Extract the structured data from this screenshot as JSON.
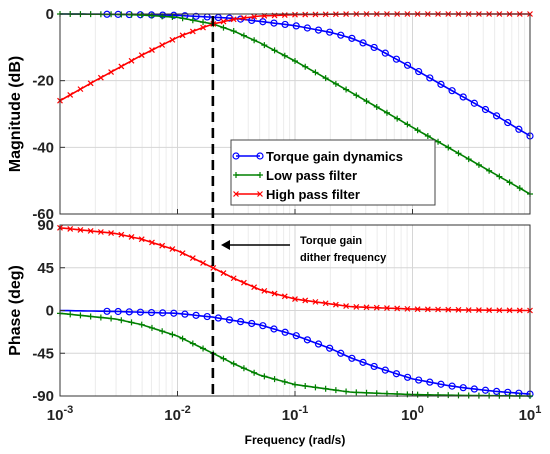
{
  "chart_data": [
    {
      "type": "line",
      "panel": "magnitude",
      "ylabel": "Magnitude (dB)",
      "xscale": "log",
      "xlim": [
        0.001,
        10
      ],
      "ylim": [
        -60,
        0
      ],
      "yticks": [
        0,
        -20,
        -40,
        -60
      ],
      "grid": true,
      "legend_position": "lower-right",
      "series": [
        {
          "name": "Torque gain dynamics",
          "color": "#0000ff",
          "marker": "circle",
          "x": [
            0.001,
            0.003,
            0.01,
            0.03,
            0.05,
            0.1,
            0.2,
            0.3,
            0.5,
            1,
            2,
            3,
            5,
            10
          ],
          "y": [
            0,
            -0.1,
            -0.4,
            -1.3,
            -2.2,
            -3.5,
            -5.5,
            -7.2,
            -10.4,
            -16.2,
            -22.3,
            -25.8,
            -30.2,
            -36.6
          ]
        },
        {
          "name": "Low pass filter",
          "color": "#008000",
          "marker": "plus",
          "x": [
            0.001,
            0.003,
            0.005,
            0.01,
            0.02,
            0.03,
            0.05,
            0.1,
            0.3,
            1,
            3,
            10
          ],
          "y": [
            0,
            -0.1,
            -0.3,
            -1.0,
            -3.0,
            -5.1,
            -8.6,
            -14.1,
            -23.5,
            -34,
            -43.5,
            -54
          ]
        },
        {
          "name": "High pass filter",
          "color": "#ff0000",
          "marker": "x",
          "x": [
            0.001,
            0.002,
            0.005,
            0.01,
            0.015,
            0.02,
            0.03,
            0.05,
            0.1,
            0.3,
            1,
            10
          ],
          "y": [
            -26,
            -20,
            -12.3,
            -7.0,
            -4.6,
            -3.0,
            -1.6,
            -0.6,
            -0.2,
            0,
            0,
            0
          ]
        }
      ]
    },
    {
      "type": "line",
      "panel": "phase",
      "ylabel": "Phase (deg)",
      "xlabel": "Frequency  (rad/s)",
      "xscale": "log",
      "xlim": [
        0.001,
        10
      ],
      "ylim": [
        -90,
        90
      ],
      "yticks": [
        90,
        45,
        0,
        -45,
        -90
      ],
      "xticks": [
        "10^-3",
        "10^-2",
        "10^-1",
        "10^0",
        "10^1"
      ],
      "grid": true,
      "series": [
        {
          "name": "Torque gain dynamics",
          "color": "#0000ff",
          "marker": "circle",
          "x": [
            0.001,
            0.003,
            0.01,
            0.02,
            0.05,
            0.1,
            0.2,
            0.3,
            0.5,
            1,
            2,
            3,
            5,
            10
          ],
          "y": [
            0,
            -1,
            -3,
            -7,
            -15,
            -26,
            -40,
            -50,
            -60,
            -72,
            -79,
            -82,
            -85,
            -88
          ]
        },
        {
          "name": "Low pass filter",
          "color": "#008000",
          "marker": "plus",
          "x": [
            0.001,
            0.003,
            0.005,
            0.01,
            0.02,
            0.03,
            0.05,
            0.1,
            0.3,
            1,
            3,
            10
          ],
          "y": [
            -3,
            -9,
            -15,
            -27,
            -45,
            -56,
            -68,
            -78,
            -86,
            -88.5,
            -89.5,
            -90
          ]
        },
        {
          "name": "High pass filter",
          "color": "#ff0000",
          "marker": "x",
          "x": [
            0.001,
            0.003,
            0.005,
            0.01,
            0.02,
            0.03,
            0.05,
            0.1,
            0.3,
            1,
            3,
            10
          ],
          "y": [
            87,
            81,
            75,
            63,
            45,
            34,
            22,
            12,
            4,
            1.5,
            0.5,
            0
          ]
        }
      ]
    }
  ],
  "legend": {
    "items": [
      {
        "label": "Torque gain dynamics",
        "color": "#0000ff",
        "marker": "circle"
      },
      {
        "label": "Low pass filter",
        "color": "#008000",
        "marker": "plus"
      },
      {
        "label": "High pass filter",
        "color": "#ff0000",
        "marker": "x"
      }
    ]
  },
  "annotation": {
    "line1": "Torque gain",
    "line2": "dither frequency",
    "dither_frequency": 0.02
  }
}
